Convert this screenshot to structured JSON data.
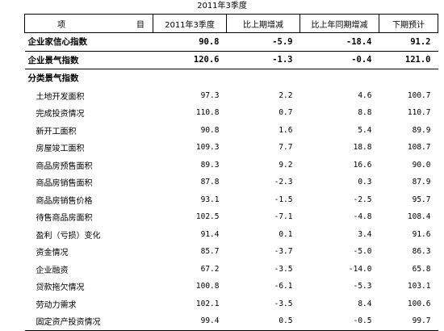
{
  "caption": "2011年3季度",
  "header": {
    "item_a": "项",
    "item_b": "目",
    "col1": "2011年3季度",
    "col2": "比上期增减",
    "col3": "比上年同期增减",
    "col4": "下期预计"
  },
  "rows": [
    {
      "name": "企业家信心指数",
      "v1": "90.8",
      "v2": "-5.9",
      "v3": "-18.4",
      "v4": "91.2"
    },
    {
      "name": "企业景气指数",
      "v1": "120.6",
      "v2": "-1.3",
      "v3": "-0.4",
      "v4": "121.0"
    },
    {
      "name": "分类景气指数"
    },
    {
      "name": "土地开发面积",
      "v1": "97.3",
      "v2": "2.2",
      "v3": "4.6",
      "v4": "100.7"
    },
    {
      "name": "完成投资情况",
      "v1": "110.8",
      "v2": "0.7",
      "v3": "8.8",
      "v4": "110.7"
    },
    {
      "name": "新开工面积",
      "v1": "90.8",
      "v2": "1.6",
      "v3": "5.4",
      "v4": "89.9"
    },
    {
      "name": "房屋竣工面积",
      "v1": "109.3",
      "v2": "7.7",
      "v3": "18.8",
      "v4": "108.7"
    },
    {
      "name": "商品房预售面积",
      "v1": "89.3",
      "v2": "9.2",
      "v3": "16.6",
      "v4": "90.0"
    },
    {
      "name": "商品房销售面积",
      "v1": "87.8",
      "v2": "-2.3",
      "v3": "0.3",
      "v4": "87.9"
    },
    {
      "name": "商品房销售价格",
      "v1": "93.1",
      "v2": "-1.5",
      "v3": "-2.5",
      "v4": "95.7"
    },
    {
      "name": "待售商品房面积",
      "v1": "102.5",
      "v2": "-7.1",
      "v3": "-4.8",
      "v4": "108.4"
    },
    {
      "name": "盈利（亏损）变化",
      "v1": "91.4",
      "v2": "0.1",
      "v3": "3.4",
      "v4": "91.6"
    },
    {
      "name": "资金情况",
      "v1": "85.7",
      "v2": "-3.7",
      "v3": "-5.0",
      "v4": "86.3"
    },
    {
      "name": "企业融资",
      "v1": "67.2",
      "v2": "-3.5",
      "v3": "-14.0",
      "v4": "65.8"
    },
    {
      "name": "贷款拖欠情况",
      "v1": "100.8",
      "v2": "-6.1",
      "v3": "-5.3",
      "v4": "103.1"
    },
    {
      "name": "劳动力需求",
      "v1": "102.1",
      "v2": "-3.5",
      "v3": "8.4",
      "v4": "100.6"
    },
    {
      "name": "固定资产投资情况",
      "v1": "99.4",
      "v2": "0.5",
      "v3": "-0.5",
      "v4": "99.7"
    }
  ]
}
